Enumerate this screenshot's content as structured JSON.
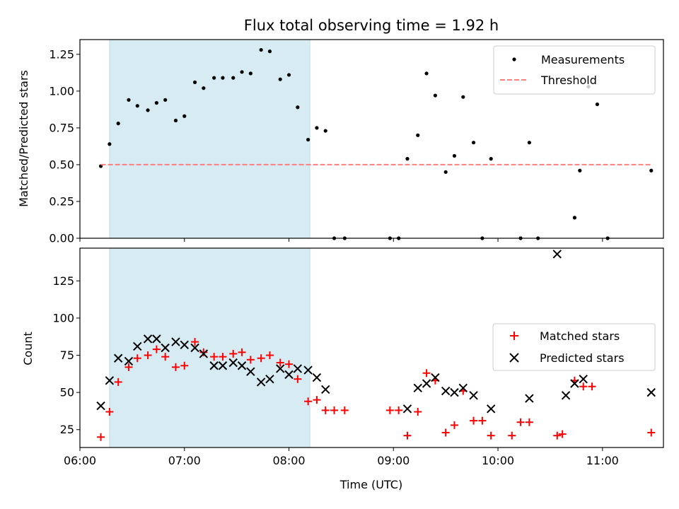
{
  "chart_data": [
    {
      "type": "scatter",
      "title": "Flux total observing time = 1.92 h",
      "xlabel": "",
      "ylabel": "Matched/Predicted stars",
      "xlim": [
        "06:00",
        "11:35"
      ],
      "ylim": [
        0,
        1.35
      ],
      "yticks": [
        0.0,
        0.25,
        0.5,
        0.75,
        1.0,
        1.25
      ],
      "ytick_labels": [
        "0.00",
        "0.25",
        "0.50",
        "0.75",
        "1.00",
        "1.25"
      ],
      "shaded_region": {
        "x": [
          "06:17",
          "08:12"
        ],
        "color": "#add8e6"
      },
      "legend": {
        "position": "top-right",
        "entries": [
          "Measurements",
          "Threshold"
        ]
      },
      "series": [
        {
          "name": "Measurements",
          "marker": "dot",
          "color": "#000000",
          "points": [
            [
              "06:12",
              0.49
            ],
            [
              "06:17",
              0.64
            ],
            [
              "06:22",
              0.78
            ],
            [
              "06:28",
              0.94
            ],
            [
              "06:33",
              0.9
            ],
            [
              "06:39",
              0.87
            ],
            [
              "06:44",
              0.92
            ],
            [
              "06:49",
              0.94
            ],
            [
              "06:55",
              0.8
            ],
            [
              "07:00",
              0.83
            ],
            [
              "07:06",
              1.06
            ],
            [
              "07:11",
              1.02
            ],
            [
              "07:17",
              1.09
            ],
            [
              "07:22",
              1.09
            ],
            [
              "07:28",
              1.09
            ],
            [
              "07:33",
              1.13
            ],
            [
              "07:38",
              1.12
            ],
            [
              "07:44",
              1.28
            ],
            [
              "07:49",
              1.27
            ],
            [
              "07:55",
              1.08
            ],
            [
              "08:00",
              1.11
            ],
            [
              "08:05",
              0.89
            ],
            [
              "08:11",
              0.67
            ],
            [
              "08:16",
              0.75
            ],
            [
              "08:21",
              0.73
            ],
            [
              "08:26",
              0.0
            ],
            [
              "08:32",
              0.0
            ],
            [
              "08:58",
              0.0
            ],
            [
              "09:03",
              0.0
            ],
            [
              "09:08",
              0.54
            ],
            [
              "09:14",
              0.7
            ],
            [
              "09:19",
              1.12
            ],
            [
              "09:24",
              0.97
            ],
            [
              "09:30",
              0.45
            ],
            [
              "09:35",
              0.56
            ],
            [
              "09:40",
              0.96
            ],
            [
              "09:46",
              0.65
            ],
            [
              "09:51",
              0.0
            ],
            [
              "09:56",
              0.54
            ],
            [
              "10:13",
              0.0
            ],
            [
              "10:18",
              0.65
            ],
            [
              "10:23",
              0.0
            ],
            [
              "10:44",
              0.14
            ],
            [
              "10:47",
              0.46
            ],
            [
              "10:52",
              1.03
            ],
            [
              "10:57",
              0.91
            ],
            [
              "11:03",
              0.0
            ],
            [
              "11:28",
              0.46
            ]
          ]
        },
        {
          "name": "Threshold",
          "type": "line",
          "style": "dashed",
          "color": "#ff7f7f",
          "x": [
            "06:12",
            "11:28"
          ],
          "y": [
            0.5,
            0.5
          ]
        }
      ]
    },
    {
      "type": "scatter",
      "title": "",
      "xlabel": "Time (UTC)",
      "ylabel": "Count",
      "xlim": [
        "06:00",
        "11:35"
      ],
      "ylim": [
        13,
        147
      ],
      "xticks": [
        "06:00",
        "07:00",
        "08:00",
        "09:00",
        "10:00",
        "11:00"
      ],
      "yticks": [
        25,
        50,
        75,
        100,
        125
      ],
      "ytick_labels": [
        "25",
        "50",
        "75",
        "100",
        "125"
      ],
      "shaded_region": {
        "x": [
          "06:17",
          "08:12"
        ],
        "color": "#add8e6"
      },
      "legend": {
        "position": "center-right",
        "entries": [
          "Matched stars",
          "Predicted stars"
        ]
      },
      "series": [
        {
          "name": "Matched stars",
          "marker": "plus",
          "color": "#ff0000",
          "points": [
            [
              "06:12",
              20
            ],
            [
              "06:17",
              37
            ],
            [
              "06:22",
              57
            ],
            [
              "06:28",
              67
            ],
            [
              "06:33",
              73
            ],
            [
              "06:39",
              75
            ],
            [
              "06:44",
              79
            ],
            [
              "06:49",
              74
            ],
            [
              "06:55",
              67
            ],
            [
              "07:00",
              68
            ],
            [
              "07:06",
              84
            ],
            [
              "07:11",
              77
            ],
            [
              "07:17",
              74
            ],
            [
              "07:22",
              74
            ],
            [
              "07:28",
              76
            ],
            [
              "07:33",
              77
            ],
            [
              "07:38",
              72
            ],
            [
              "07:44",
              73
            ],
            [
              "07:49",
              75
            ],
            [
              "07:55",
              70
            ],
            [
              "08:00",
              69
            ],
            [
              "08:05",
              59
            ],
            [
              "08:11",
              44
            ],
            [
              "08:16",
              45
            ],
            [
              "08:21",
              38
            ],
            [
              "08:26",
              38
            ],
            [
              "08:32",
              38
            ],
            [
              "08:58",
              38
            ],
            [
              "09:03",
              38
            ],
            [
              "09:08",
              21
            ],
            [
              "09:14",
              37
            ],
            [
              "09:19",
              63
            ],
            [
              "09:24",
              58
            ],
            [
              "09:30",
              23
            ],
            [
              "09:35",
              28
            ],
            [
              "09:40",
              51
            ],
            [
              "09:46",
              31
            ],
            [
              "09:51",
              31
            ],
            [
              "09:56",
              21
            ],
            [
              "10:08",
              21
            ],
            [
              "10:13",
              30
            ],
            [
              "10:18",
              30
            ],
            [
              "10:34",
              21
            ],
            [
              "10:37",
              22
            ],
            [
              "10:44",
              58
            ],
            [
              "10:49",
              54
            ],
            [
              "10:54",
              54
            ],
            [
              "11:28",
              23
            ]
          ]
        },
        {
          "name": "Predicted stars",
          "marker": "x",
          "color": "#000000",
          "points": [
            [
              "06:12",
              41
            ],
            [
              "06:17",
              58
            ],
            [
              "06:22",
              73
            ],
            [
              "06:28",
              71
            ],
            [
              "06:33",
              81
            ],
            [
              "06:39",
              86
            ],
            [
              "06:44",
              86
            ],
            [
              "06:49",
              80
            ],
            [
              "06:55",
              84
            ],
            [
              "07:00",
              82
            ],
            [
              "07:06",
              80
            ],
            [
              "07:11",
              76
            ],
            [
              "07:17",
              68
            ],
            [
              "07:22",
              68
            ],
            [
              "07:28",
              70
            ],
            [
              "07:33",
              68
            ],
            [
              "07:38",
              64
            ],
            [
              "07:44",
              57
            ],
            [
              "07:49",
              59
            ],
            [
              "07:55",
              66
            ],
            [
              "08:00",
              62
            ],
            [
              "08:05",
              66
            ],
            [
              "08:11",
              65
            ],
            [
              "08:16",
              60
            ],
            [
              "08:21",
              52
            ],
            [
              "09:08",
              39
            ],
            [
              "09:14",
              53
            ],
            [
              "09:19",
              56
            ],
            [
              "09:24",
              60
            ],
            [
              "09:30",
              51
            ],
            [
              "09:35",
              50
            ],
            [
              "09:40",
              53
            ],
            [
              "09:46",
              48
            ],
            [
              "09:56",
              39
            ],
            [
              "10:18",
              46
            ],
            [
              "10:34",
              143
            ],
            [
              "10:39",
              48
            ],
            [
              "10:44",
              56
            ],
            [
              "10:49",
              59
            ],
            [
              "11:28",
              50
            ]
          ]
        }
      ]
    }
  ]
}
